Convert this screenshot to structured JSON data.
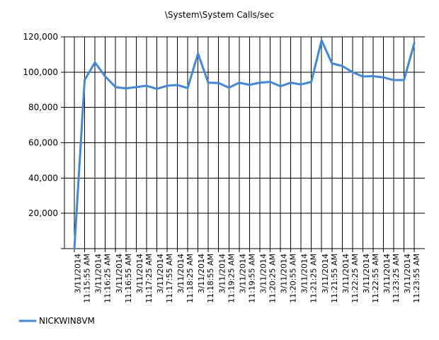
{
  "chart_data": {
    "type": "line",
    "title": "\\System\\System Calls/sec",
    "xlabel": "",
    "ylabel": "",
    "ylim": [
      0,
      120000
    ],
    "y_ticks": [
      "20,000",
      "40,000",
      "60,000",
      "80,000",
      "100,000",
      "120,000"
    ],
    "y_tick_values": [
      20000,
      40000,
      60000,
      80000,
      100000,
      120000
    ],
    "x_tick_labels": [
      "3/11/2014 11:15:55 AM",
      "3/11/2014 11:16:25 AM",
      "3/11/2014 11:16:55 AM",
      "3/11/2014 11:17:25 AM",
      "3/11/2014 11:17:55 AM",
      "3/11/2014 11:18:25 AM",
      "3/11/2014 11:18:55 AM",
      "3/11/2014 11:19:25 AM",
      "3/11/2014 11:19:55 AM",
      "3/11/2014 11:20:25 AM",
      "3/11/2014 11:20:55 AM",
      "3/11/2014 11:21:25 AM",
      "3/11/2014 11:21:55 AM",
      "3/11/2014 11:22:25 AM",
      "3/11/2014 11:22:55 AM",
      "3/11/2014 11:23:25 AM",
      "3/11/2014 11:23:55 AM"
    ],
    "grid": true,
    "legend_position": "bottom-left",
    "series": [
      {
        "name": "NICKWIN8VM",
        "color": "#3d88e0",
        "x": [
          "11:15:40 AM",
          "11:15:55 AM",
          "11:16:10 AM",
          "11:16:25 AM",
          "11:16:40 AM",
          "11:16:55 AM",
          "11:17:10 AM",
          "11:17:25 AM",
          "11:17:40 AM",
          "11:17:55 AM",
          "11:18:10 AM",
          "11:18:25 AM",
          "11:18:40 AM",
          "11:18:55 AM",
          "11:19:10 AM",
          "11:19:25 AM",
          "11:19:40 AM",
          "11:19:55 AM",
          "11:20:10 AM",
          "11:20:25 AM",
          "11:20:40 AM",
          "11:20:55 AM",
          "11:21:10 AM",
          "11:21:25 AM",
          "11:21:40 AM",
          "11:21:55 AM",
          "11:22:10 AM",
          "11:22:25 AM",
          "11:22:40 AM",
          "11:22:55 AM",
          "11:23:10 AM",
          "11:23:25 AM",
          "11:23:40 AM",
          "11:23:55 AM"
        ],
        "values": [
          0,
          95500,
          105500,
          97500,
          91500,
          90800,
          91500,
          92300,
          90500,
          92300,
          92700,
          91000,
          110500,
          94000,
          93800,
          91200,
          94000,
          92800,
          94000,
          94500,
          92000,
          94000,
          93000,
          94500,
          118000,
          105000,
          103500,
          100000,
          97500,
          97700,
          97000,
          95500,
          95500,
          116500
        ]
      }
    ]
  }
}
